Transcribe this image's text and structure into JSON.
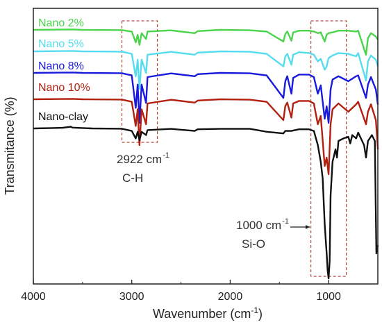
{
  "chart_data": {
    "type": "line",
    "title": "",
    "xlabel": "Wavenumber (cm",
    "xlabel_sup": "-1",
    "xlabel_tail": ")",
    "ylabel": "Transmitance (%)",
    "xlim": [
      4000,
      500
    ],
    "x_reversed": true,
    "xticks": [
      4000,
      3000,
      2000,
      1000
    ],
    "grid": false,
    "series": [
      {
        "name": "Nano 2%",
        "color": "#4cd44c",
        "baseline": 0,
        "points": [
          [
            4000,
            0
          ],
          [
            3700,
            0.3
          ],
          [
            3600,
            0.5
          ],
          [
            3500,
            0
          ],
          [
            3100,
            -0.3
          ],
          [
            3000,
            -2
          ],
          [
            2960,
            -15
          ],
          [
            2940,
            -6
          ],
          [
            2922,
            -18
          ],
          [
            2900,
            -4
          ],
          [
            2855,
            -11
          ],
          [
            2840,
            -2
          ],
          [
            2600,
            -0.6
          ],
          [
            2360,
            -4
          ],
          [
            2330,
            -1.5
          ],
          [
            2100,
            0
          ],
          [
            1800,
            -0.5
          ],
          [
            1630,
            -2
          ],
          [
            1460,
            -14
          ],
          [
            1440,
            -5
          ],
          [
            1420,
            -2
          ],
          [
            1378,
            -13
          ],
          [
            1360,
            -3
          ],
          [
            1300,
            -1
          ],
          [
            1200,
            -1
          ],
          [
            1150,
            -2
          ],
          [
            1110,
            -4
          ],
          [
            1080,
            -3
          ],
          [
            1040,
            -14
          ],
          [
            1020,
            -6
          ],
          [
            1000,
            -4
          ],
          [
            960,
            -3
          ],
          [
            900,
            -1
          ],
          [
            800,
            -1
          ],
          [
            720,
            -2
          ],
          [
            700,
            -1
          ],
          [
            620,
            -30
          ],
          [
            600,
            -10
          ],
          [
            570,
            -4
          ],
          [
            520,
            -8
          ],
          [
            500,
            -12
          ]
        ]
      },
      {
        "name": "Nano 5%",
        "color": "#55ddee",
        "baseline": 0,
        "points": [
          [
            4000,
            0
          ],
          [
            3700,
            0.3
          ],
          [
            3600,
            0.5
          ],
          [
            3500,
            0
          ],
          [
            3100,
            -0.3
          ],
          [
            3000,
            -3
          ],
          [
            2960,
            -30
          ],
          [
            2940,
            -10
          ],
          [
            2922,
            -45
          ],
          [
            2900,
            -10
          ],
          [
            2855,
            -26
          ],
          [
            2840,
            -4
          ],
          [
            2600,
            -0.6
          ],
          [
            2360,
            -4
          ],
          [
            2330,
            -1.5
          ],
          [
            2100,
            0
          ],
          [
            1800,
            -0.5
          ],
          [
            1630,
            -3
          ],
          [
            1460,
            -18
          ],
          [
            1440,
            -6
          ],
          [
            1420,
            -3
          ],
          [
            1378,
            -16
          ],
          [
            1360,
            -4
          ],
          [
            1300,
            -1
          ],
          [
            1200,
            -2
          ],
          [
            1150,
            -4
          ],
          [
            1110,
            -12
          ],
          [
            1080,
            -9
          ],
          [
            1040,
            -22
          ],
          [
            1020,
            -18
          ],
          [
            1000,
            -8
          ],
          [
            960,
            -5
          ],
          [
            900,
            -2
          ],
          [
            800,
            -3
          ],
          [
            720,
            -6
          ],
          [
            700,
            -2
          ],
          [
            620,
            -35
          ],
          [
            600,
            -12
          ],
          [
            570,
            -5
          ],
          [
            520,
            -10
          ],
          [
            500,
            -18
          ]
        ]
      },
      {
        "name": "Nano 8%",
        "color": "#1a1adc",
        "baseline": 0,
        "points": [
          [
            4000,
            0
          ],
          [
            3700,
            0.3
          ],
          [
            3600,
            0.5
          ],
          [
            3500,
            0
          ],
          [
            3100,
            -0.3
          ],
          [
            3000,
            -3
          ],
          [
            2960,
            -42
          ],
          [
            2940,
            -14
          ],
          [
            2922,
            -60
          ],
          [
            2900,
            -14
          ],
          [
            2855,
            -36
          ],
          [
            2840,
            -5
          ],
          [
            2600,
            -0.6
          ],
          [
            2360,
            -4
          ],
          [
            2330,
            -1.5
          ],
          [
            2100,
            0
          ],
          [
            1800,
            -0.5
          ],
          [
            1630,
            -3
          ],
          [
            1460,
            -30
          ],
          [
            1440,
            -10
          ],
          [
            1420,
            -4
          ],
          [
            1378,
            -25
          ],
          [
            1360,
            -6
          ],
          [
            1300,
            -2
          ],
          [
            1200,
            -2
          ],
          [
            1150,
            -5
          ],
          [
            1110,
            -25
          ],
          [
            1080,
            -15
          ],
          [
            1040,
            -55
          ],
          [
            1020,
            -40
          ],
          [
            1000,
            -60
          ],
          [
            980,
            -20
          ],
          [
            960,
            -8
          ],
          [
            900,
            -4
          ],
          [
            800,
            -10
          ],
          [
            720,
            -4
          ],
          [
            700,
            -3
          ],
          [
            620,
            -30
          ],
          [
            600,
            -14
          ],
          [
            570,
            -5
          ],
          [
            520,
            -20
          ],
          [
            500,
            -38
          ]
        ]
      },
      {
        "name": "Nano 10%",
        "color": "#b22010",
        "baseline": 0,
        "points": [
          [
            4000,
            0
          ],
          [
            3700,
            0.3
          ],
          [
            3600,
            0.5
          ],
          [
            3500,
            0
          ],
          [
            3100,
            -0.3
          ],
          [
            3000,
            -3
          ],
          [
            2960,
            -32
          ],
          [
            2940,
            -12
          ],
          [
            2922,
            -55
          ],
          [
            2900,
            -12
          ],
          [
            2855,
            -30
          ],
          [
            2840,
            -5
          ],
          [
            2600,
            -0.6
          ],
          [
            2360,
            -4
          ],
          [
            2330,
            -1.5
          ],
          [
            2100,
            0
          ],
          [
            1800,
            -0.5
          ],
          [
            1630,
            -3
          ],
          [
            1460,
            -25
          ],
          [
            1440,
            -8
          ],
          [
            1420,
            -4
          ],
          [
            1378,
            -22
          ],
          [
            1360,
            -5
          ],
          [
            1300,
            -2
          ],
          [
            1200,
            -2
          ],
          [
            1150,
            -5
          ],
          [
            1110,
            -30
          ],
          [
            1080,
            -20
          ],
          [
            1040,
            -80
          ],
          [
            1020,
            -70
          ],
          [
            1000,
            -90
          ],
          [
            980,
            -30
          ],
          [
            960,
            -12
          ],
          [
            900,
            -5
          ],
          [
            800,
            -15
          ],
          [
            720,
            -6
          ],
          [
            700,
            -3
          ],
          [
            620,
            -30
          ],
          [
            600,
            -15
          ],
          [
            570,
            -6
          ],
          [
            520,
            -25
          ],
          [
            500,
            -60
          ]
        ]
      },
      {
        "name": "Nano-clay",
        "color": "#111111",
        "baseline": 0,
        "points": [
          [
            4000,
            0
          ],
          [
            3800,
            0.5
          ],
          [
            3700,
            0.8
          ],
          [
            3620,
            2
          ],
          [
            3600,
            1
          ],
          [
            3500,
            0.5
          ],
          [
            3400,
            0
          ],
          [
            3100,
            -0.3
          ],
          [
            3000,
            -3
          ],
          [
            2960,
            -12
          ],
          [
            2940,
            -4
          ],
          [
            2922,
            -14
          ],
          [
            2900,
            -4
          ],
          [
            2855,
            -8
          ],
          [
            2840,
            -2
          ],
          [
            2600,
            -0.5
          ],
          [
            2360,
            -3
          ],
          [
            2330,
            -1
          ],
          [
            2100,
            -0.5
          ],
          [
            1800,
            -0.5
          ],
          [
            1630,
            -4
          ],
          [
            1460,
            -6
          ],
          [
            1440,
            -3
          ],
          [
            1378,
            -3
          ],
          [
            1300,
            -1
          ],
          [
            1200,
            -1
          ],
          [
            1150,
            -3
          ],
          [
            1110,
            -20
          ],
          [
            1080,
            -40
          ],
          [
            1060,
            -60
          ],
          [
            1040,
            -115
          ],
          [
            1020,
            -150
          ],
          [
            1010,
            -170
          ],
          [
            1000,
            -180
          ],
          [
            990,
            -160
          ],
          [
            980,
            -80
          ],
          [
            960,
            -40
          ],
          [
            930,
            -25
          ],
          [
            915,
            -35
          ],
          [
            900,
            -15
          ],
          [
            850,
            -12
          ],
          [
            800,
            -10
          ],
          [
            780,
            -18
          ],
          [
            760,
            -8
          ],
          [
            720,
            -12
          ],
          [
            700,
            -5
          ],
          [
            640,
            -20
          ],
          [
            620,
            -35
          ],
          [
            600,
            -15
          ],
          [
            560,
            -8
          ],
          [
            530,
            -15
          ],
          [
            515,
            -150
          ],
          [
            500,
            -140
          ]
        ]
      }
    ],
    "annotations": [
      {
        "text": "2922 cm",
        "sup": "-1",
        "line2": "C-H",
        "range": [
          3100,
          2740
        ]
      },
      {
        "text": "1000 cm",
        "sup": "-1",
        "line2": "Si-O",
        "range": [
          1180,
          820
        ]
      }
    ]
  }
}
